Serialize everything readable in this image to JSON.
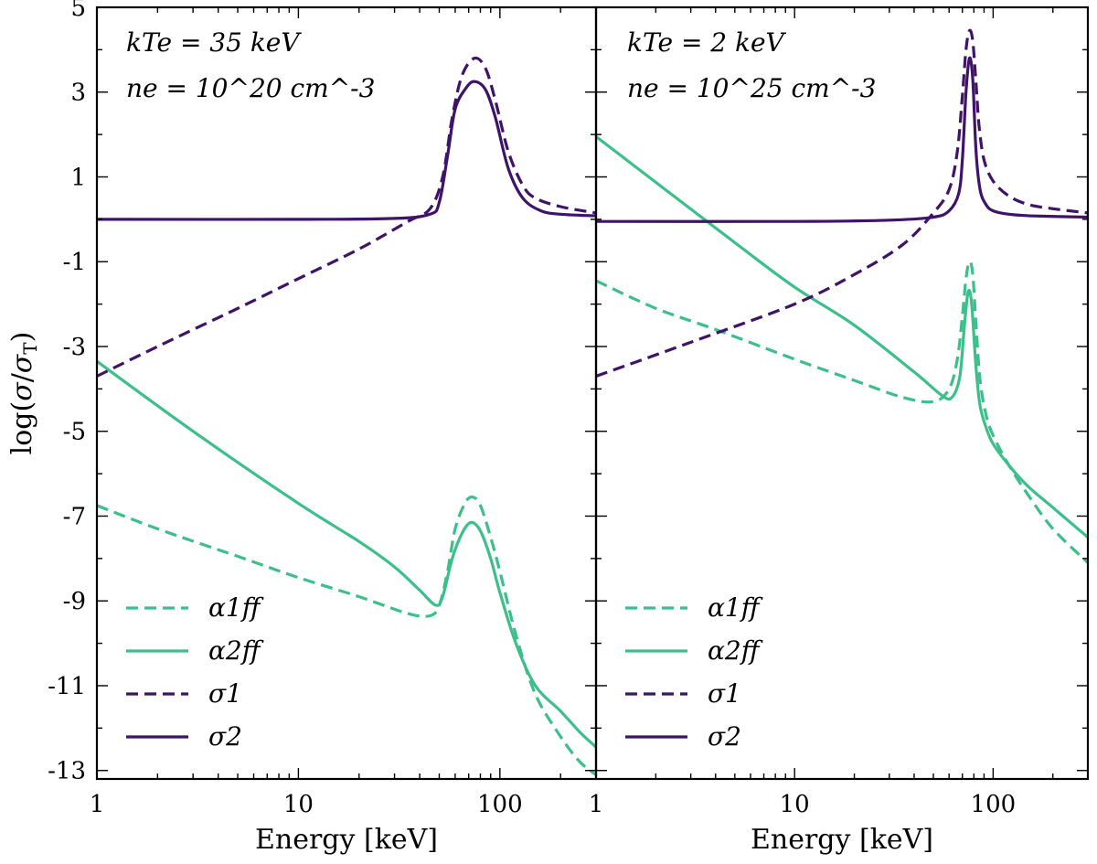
{
  "figure": {
    "ylabel": "log(σ/σT)",
    "xlabel": "Energy [keV]"
  },
  "colors": {
    "green": "#3cbf8a",
    "purple": "#3f1368"
  },
  "panels": [
    {
      "annotation_temp": "kTe = 35 keV",
      "annotation_density": "ne = 10^20 cm^-3"
    },
    {
      "annotation_temp": "kTe = 2 keV",
      "annotation_density": "ne = 10^25 cm^-3"
    }
  ],
  "legend": [
    {
      "label": "α1ff",
      "color": "green",
      "dash": true
    },
    {
      "label": "α2ff",
      "color": "green",
      "dash": false
    },
    {
      "label": "σ1",
      "color": "purple",
      "dash": true
    },
    {
      "label": "σ2",
      "color": "purple",
      "dash": false
    }
  ],
  "chart_data": [
    {
      "type": "line",
      "title": "kTe = 35 keV, ne = 10^20 cm^-3",
      "xlabel": "Energy [keV]",
      "ylabel": "log(σ/σT)",
      "xscale": "log",
      "xlim": [
        1,
        300
      ],
      "ylim": [
        -13.2,
        5
      ],
      "xticks": [
        1,
        10,
        100
      ],
      "xtick_labels": [
        "1",
        "10",
        "100"
      ],
      "yticks": [
        5,
        3,
        1,
        -1,
        -3,
        -5,
        -7,
        -9,
        -11,
        -13
      ],
      "ytick_labels": [
        "5",
        "3",
        "1",
        "-1",
        "-3",
        "-5",
        "-7",
        "-9",
        "-11",
        "-13"
      ],
      "legend_position": "bottom-left",
      "series": [
        {
          "name": "α1ff",
          "color": "green",
          "dash": true,
          "x": [
            1,
            2,
            5,
            10,
            20,
            35,
            45,
            50,
            55,
            60,
            67,
            73,
            80,
            90,
            100,
            120,
            150,
            200,
            250,
            300
          ],
          "y": [
            -6.75,
            -7.3,
            -7.95,
            -8.45,
            -8.9,
            -9.3,
            -9.35,
            -9.1,
            -8.3,
            -7.3,
            -6.7,
            -6.55,
            -6.75,
            -7.5,
            -8.3,
            -9.8,
            -11.2,
            -12.2,
            -12.8,
            -13.1
          ]
        },
        {
          "name": "α2ff",
          "color": "green",
          "dash": false,
          "x": [
            1,
            3,
            10,
            20,
            30,
            40,
            48,
            52,
            58,
            65,
            72,
            80,
            90,
            100,
            120,
            150,
            200,
            250,
            300
          ],
          "y": [
            -3.35,
            -5.0,
            -6.7,
            -7.6,
            -8.2,
            -8.75,
            -9.1,
            -8.9,
            -8.0,
            -7.4,
            -7.15,
            -7.35,
            -8.0,
            -8.8,
            -10.0,
            -11.0,
            -11.6,
            -12.1,
            -12.45
          ]
        },
        {
          "name": "σ1",
          "color": "purple",
          "dash": true,
          "x": [
            1,
            2,
            5,
            10,
            20,
            35,
            45,
            52,
            58,
            65,
            75,
            85,
            95,
            110,
            130,
            150,
            200,
            300
          ],
          "y": [
            -3.7,
            -3.0,
            -2.1,
            -1.4,
            -0.7,
            -0.05,
            0.25,
            1.0,
            2.4,
            3.4,
            3.8,
            3.55,
            2.8,
            1.6,
            0.8,
            0.5,
            0.3,
            0.15
          ]
        },
        {
          "name": "σ2",
          "color": "purple",
          "dash": false,
          "x": [
            1,
            10,
            30,
            45,
            50,
            55,
            60,
            68,
            75,
            85,
            95,
            110,
            130,
            160,
            200,
            300
          ],
          "y": [
            0.0,
            0.0,
            0.02,
            0.12,
            0.4,
            1.5,
            2.6,
            3.1,
            3.25,
            3.05,
            2.4,
            1.2,
            0.5,
            0.2,
            0.12,
            0.08
          ]
        }
      ]
    },
    {
      "type": "line",
      "title": "kTe = 2 keV, ne = 10^25 cm^-3",
      "xlabel": "Energy [keV]",
      "ylabel": "",
      "xscale": "log",
      "xlim": [
        1,
        300
      ],
      "ylim": [
        -13.2,
        5
      ],
      "xticks": [
        1,
        10,
        100
      ],
      "xtick_labels": [
        "1",
        "10",
        "100"
      ],
      "legend_position": "bottom-left",
      "series": [
        {
          "name": "α1ff",
          "color": "green",
          "dash": true,
          "x": [
            1,
            2,
            4,
            10,
            20,
            35,
            50,
            60,
            66,
            70,
            73,
            76,
            79,
            82,
            86,
            92,
            100,
            120,
            150,
            200,
            300
          ],
          "y": [
            -1.45,
            -2.1,
            -2.6,
            -3.3,
            -3.8,
            -4.2,
            -4.3,
            -4.0,
            -3.3,
            -2.3,
            -1.4,
            -1.0,
            -1.3,
            -2.5,
            -3.8,
            -4.6,
            -5.1,
            -5.8,
            -6.5,
            -7.3,
            -8.1
          ]
        },
        {
          "name": "α2ff",
          "color": "green",
          "dash": false,
          "x": [
            1,
            5,
            10,
            20,
            40,
            55,
            62,
            68,
            72,
            75,
            78,
            82,
            86,
            92,
            100,
            120,
            150,
            200,
            300
          ],
          "y": [
            1.95,
            -0.55,
            -1.6,
            -2.5,
            -3.6,
            -4.15,
            -4.2,
            -3.7,
            -2.4,
            -1.7,
            -2.0,
            -3.5,
            -4.4,
            -4.9,
            -5.3,
            -5.8,
            -6.3,
            -6.8,
            -7.5
          ]
        },
        {
          "name": "σ1",
          "color": "purple",
          "dash": true,
          "x": [
            1,
            3,
            10,
            20,
            35,
            50,
            60,
            66,
            70,
            73,
            76,
            79,
            82,
            85,
            90,
            100,
            120,
            150,
            200,
            300
          ],
          "y": [
            -3.7,
            -2.9,
            -2.0,
            -1.3,
            -0.6,
            0.15,
            0.7,
            1.6,
            2.9,
            4.0,
            4.45,
            4.2,
            3.2,
            2.2,
            1.4,
            0.9,
            0.55,
            0.35,
            0.25,
            0.15
          ]
        },
        {
          "name": "σ2",
          "color": "purple",
          "dash": false,
          "x": [
            1,
            10,
            30,
            50,
            60,
            67,
            70,
            73,
            76,
            79,
            82,
            86,
            92,
            100,
            120,
            160,
            300
          ],
          "y": [
            -0.05,
            -0.05,
            -0.02,
            0.05,
            0.2,
            0.6,
            1.4,
            3.0,
            3.8,
            3.3,
            1.6,
            0.7,
            0.35,
            0.2,
            0.12,
            0.08,
            0.05
          ]
        }
      ]
    }
  ]
}
